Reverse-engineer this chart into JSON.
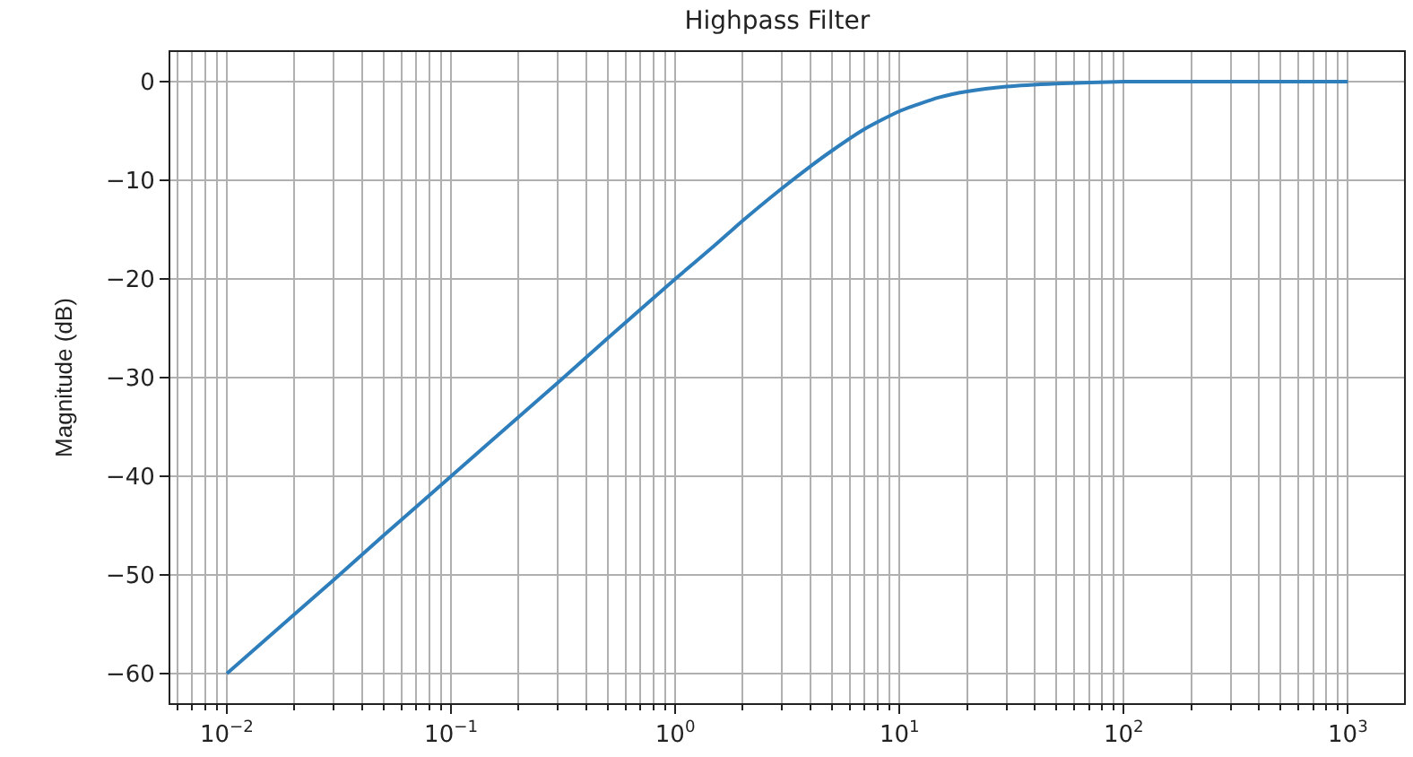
{
  "chart_data": {
    "type": "line",
    "title": "Highpass Filter",
    "ylabel": "Magnitude (dB)",
    "log": "x",
    "x": [
      0.01,
      0.02,
      0.03,
      0.05,
      0.1,
      0.2,
      0.3,
      0.5,
      1,
      1.5,
      2,
      3,
      4,
      5,
      7,
      10,
      15,
      20,
      30,
      50,
      100,
      200,
      1000
    ],
    "series": [
      {
        "color": "#2f7ebc",
        "values": [
          -60,
          -54,
          -50.5,
          -46,
          -40,
          -34,
          -30.5,
          -26,
          -20,
          -16.6,
          -14.1,
          -10.8,
          -8.6,
          -7,
          -4.8,
          -3,
          -1.6,
          -1,
          -0.5,
          -0.2,
          0,
          0,
          0
        ]
      }
    ],
    "xlim": [
      0.0056,
      1780
    ],
    "ylim": [
      -63,
      3
    ],
    "xticks": [
      {
        "value": 0.01,
        "label": "10$^{−2}$"
      },
      {
        "value": 0.1,
        "label": "10$^{−1}$"
      },
      {
        "value": 1,
        "label": "10$^{0}$"
      },
      {
        "value": 10,
        "label": "10$^{1}$"
      },
      {
        "value": 100,
        "label": "10$^{2}$"
      },
      {
        "value": 1000,
        "label": "10$^{3}$"
      }
    ],
    "yticks": [
      {
        "value": 0,
        "label": "0"
      },
      {
        "value": -10,
        "label": "−10"
      },
      {
        "value": -20,
        "label": "−20"
      },
      {
        "value": -30,
        "label": "−30"
      },
      {
        "value": -40,
        "label": "−40"
      },
      {
        "value": -50,
        "label": "−50"
      },
      {
        "value": -60,
        "label": "−60"
      }
    ],
    "grid": true,
    "marker": "none",
    "line_style": "solid"
  }
}
